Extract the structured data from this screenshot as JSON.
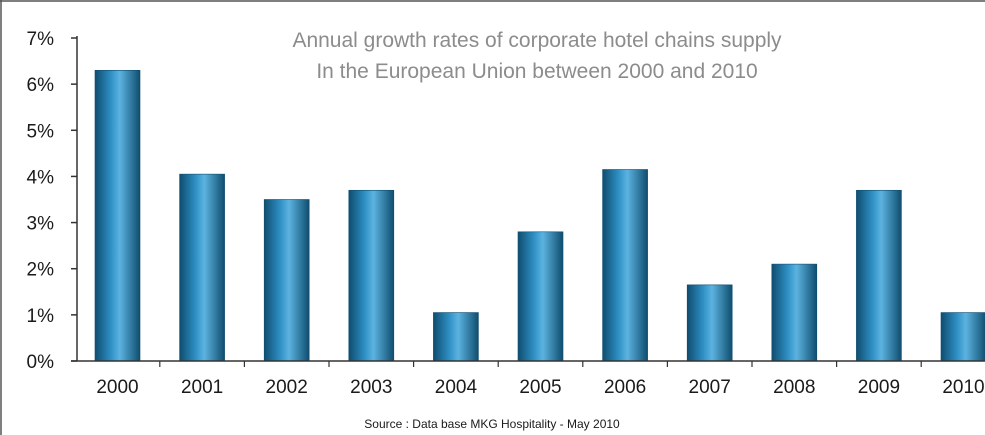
{
  "chart_data": {
    "type": "bar",
    "title_lines": [
      "Annual growth rates of corporate hotel chains supply",
      "In the European Union between 2000 and 2010"
    ],
    "categories": [
      "2000",
      "2001",
      "2002",
      "2003",
      "2004",
      "2005",
      "2006",
      "2007",
      "2008",
      "2009",
      "2010"
    ],
    "values": [
      6.3,
      4.05,
      3.5,
      3.7,
      1.05,
      2.8,
      4.15,
      1.65,
      2.1,
      3.7,
      1.05
    ],
    "value_unit": "%",
    "ylim": [
      0,
      7
    ],
    "yticks": [
      "0%",
      "1%",
      "2%",
      "3%",
      "4%",
      "5%",
      "6%",
      "7%"
    ],
    "xlabel": "",
    "ylabel": "",
    "grid": false,
    "legend": "none",
    "source": "Source : Data base MKG Hospitality - May 2010",
    "colors": {
      "bar_edge": "#0f4d6f",
      "bar_mid": "#2e8fc4",
      "bar_highlight": "#5cb3e0",
      "title": "#8c8c8c",
      "axis": "#333333"
    }
  }
}
